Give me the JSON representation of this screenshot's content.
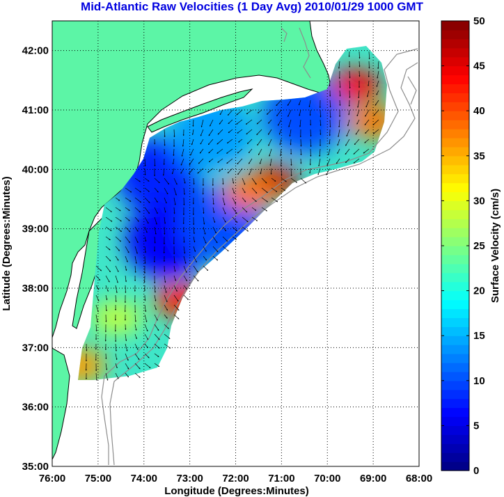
{
  "title": "Mid-Atlantic Raw Velocities (1 Day Avg) 2010/01/29 1000 GMT",
  "map": {
    "xlabel": "Longitude (Degrees:Minutes)",
    "ylabel": "Latitude (Degrees:Minutes)",
    "lon_range": [
      -76,
      -68
    ],
    "lat_range": [
      35,
      42.5
    ],
    "x_ticks": [
      {
        "value": -76,
        "label": "76:00"
      },
      {
        "value": -75,
        "label": "75:00"
      },
      {
        "value": -74,
        "label": "74:00"
      },
      {
        "value": -73,
        "label": "73:00"
      },
      {
        "value": -72,
        "label": "72:00"
      },
      {
        "value": -71,
        "label": "71:00"
      },
      {
        "value": -70,
        "label": "70:00"
      },
      {
        "value": -69,
        "label": "69:00"
      },
      {
        "value": -68,
        "label": "68:00"
      }
    ],
    "y_ticks": [
      {
        "value": 35,
        "label": "35:00"
      },
      {
        "value": 36,
        "label": "36:00"
      },
      {
        "value": 37,
        "label": "37:00"
      },
      {
        "value": 38,
        "label": "38:00"
      },
      {
        "value": 39,
        "label": "39:00"
      },
      {
        "value": 40,
        "label": "40:00"
      },
      {
        "value": 41,
        "label": "41:00"
      },
      {
        "value": 42,
        "label": "42:00"
      }
    ],
    "grid": "dotted",
    "land_color": "#5cf5a6",
    "coast_color": "#000000"
  },
  "colorbar": {
    "label": "Surface Velocity (cm/s)",
    "range": [
      0,
      50
    ],
    "ticks": [
      {
        "value": 0,
        "label": "0"
      },
      {
        "value": 5,
        "label": "5"
      },
      {
        "value": 10,
        "label": "10"
      },
      {
        "value": 15,
        "label": "15"
      },
      {
        "value": 20,
        "label": "20"
      },
      {
        "value": 25,
        "label": "25"
      },
      {
        "value": 30,
        "label": "30"
      },
      {
        "value": 35,
        "label": "35"
      },
      {
        "value": 40,
        "label": "40"
      },
      {
        "value": 45,
        "label": "45"
      },
      {
        "value": 50,
        "label": "50"
      }
    ],
    "colormap": "jet"
  },
  "chart_data": {
    "type": "heatmap",
    "units": "cm/s",
    "regions": [
      {
        "lon": -73.7,
        "lat": 39.9,
        "speed": 8
      },
      {
        "lon": -73.5,
        "lat": 38.8,
        "speed": 6
      },
      {
        "lon": -72.3,
        "lat": 39.1,
        "speed": 10
      },
      {
        "lon": -71.2,
        "lat": 39.8,
        "speed": 46
      },
      {
        "lon": -71.7,
        "lat": 39.6,
        "speed": 38
      },
      {
        "lon": -73.2,
        "lat": 37.8,
        "speed": 42
      },
      {
        "lon": -74.6,
        "lat": 37.5,
        "speed": 28
      },
      {
        "lon": -75.4,
        "lat": 36.7,
        "speed": 36
      },
      {
        "lon": -69.4,
        "lat": 41.4,
        "speed": 44
      },
      {
        "lon": -69.0,
        "lat": 40.8,
        "speed": 38
      },
      {
        "lon": -70.5,
        "lat": 40.9,
        "speed": 10
      },
      {
        "lon": -72.5,
        "lat": 40.6,
        "speed": 14
      }
    ]
  }
}
